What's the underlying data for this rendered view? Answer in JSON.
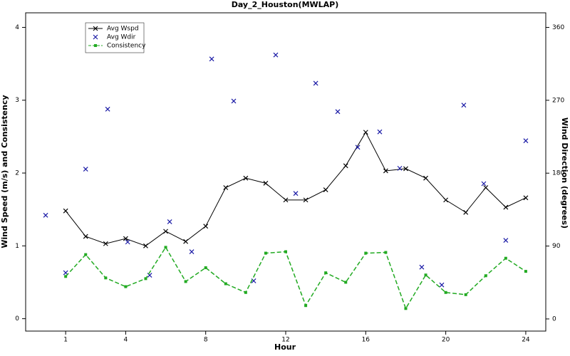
{
  "chart_data": {
    "type": "line",
    "title": "Day_2_Houston(MWLAP)",
    "xlabel": "Hour",
    "ylabel": "Wind Speed (m/s) and Consistency",
    "y2label": "Wind Direction (degrees)",
    "xlim": [
      -1,
      25
    ],
    "xticks": [
      1,
      4,
      8,
      12,
      16,
      20,
      24
    ],
    "ylim": [
      -0.17,
      4.2
    ],
    "yticks": [
      0,
      1,
      2,
      3,
      4
    ],
    "y2lim": [
      -15,
      378
    ],
    "y2ticks": [
      0,
      90,
      180,
      270,
      360
    ],
    "legend": "top-left",
    "series": [
      {
        "name": "Avg Wspd",
        "color": "#000000",
        "mode": "line",
        "marker": "x",
        "x": [
          1,
          2,
          3,
          4,
          5,
          6,
          7,
          8,
          9,
          10,
          11,
          12,
          13,
          14,
          15,
          16,
          17,
          18,
          19,
          20,
          21,
          22,
          23,
          24
        ],
        "values": [
          1.48,
          1.13,
          1.03,
          1.1,
          1.0,
          1.2,
          1.06,
          1.27,
          1.8,
          1.93,
          1.86,
          1.63,
          1.63,
          1.77,
          2.1,
          2.56,
          2.03,
          2.06,
          1.93,
          1.63,
          1.46,
          1.8,
          1.53,
          1.66
        ]
      },
      {
        "name": "Avg Wdir",
        "color": "#1a1aa6",
        "mode": "markers",
        "marker": "x",
        "axis": "y2",
        "x": [
          0,
          1,
          2,
          3.1,
          4.1,
          5.2,
          6.2,
          7.3,
          8.3,
          9.4,
          10.4,
          11.5,
          12.5,
          13.5,
          14.6,
          15.6,
          16.7,
          17.7,
          18.8,
          19.8,
          20.9,
          21.9,
          23,
          24
        ],
        "values": [
          128,
          57,
          185,
          259,
          95,
          54,
          120,
          83,
          321,
          269,
          47,
          326,
          155,
          291,
          256,
          212,
          231,
          186,
          64,
          42,
          264,
          167,
          97,
          220
        ]
      },
      {
        "name": "Consistency",
        "color": "#22aa22",
        "mode": "dashed",
        "marker": "square",
        "x": [
          1,
          2,
          3,
          4,
          5,
          6,
          7,
          8,
          9,
          10,
          11,
          12,
          13,
          14,
          15,
          16,
          17,
          18,
          19,
          20,
          21,
          22,
          23,
          24
        ],
        "values": [
          0.58,
          0.88,
          0.56,
          0.44,
          0.55,
          0.98,
          0.51,
          0.7,
          0.48,
          0.36,
          0.9,
          0.92,
          0.18,
          0.63,
          0.5,
          0.9,
          0.91,
          0.14,
          0.6,
          0.36,
          0.33,
          0.59,
          0.83,
          0.65
        ]
      }
    ]
  }
}
